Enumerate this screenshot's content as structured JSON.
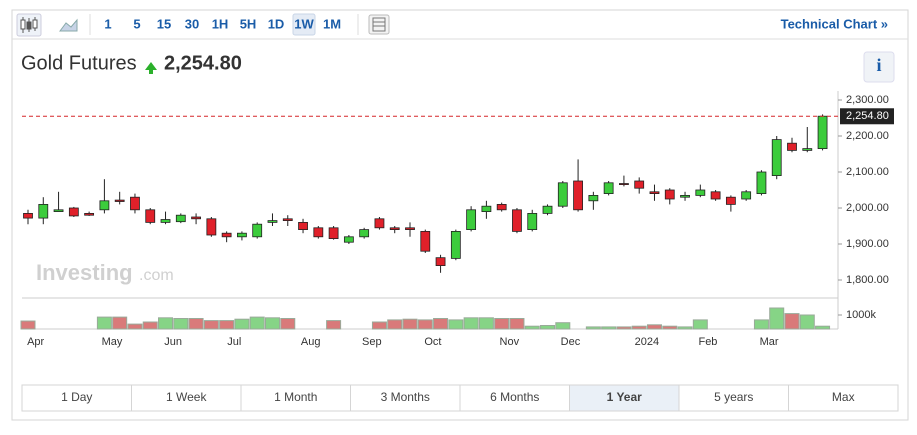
{
  "toolbar": {
    "intervals": [
      "1",
      "5",
      "15",
      "30",
      "1H",
      "5H",
      "1D",
      "1W",
      "1M"
    ],
    "selected_interval": 7,
    "technical_chart": "Technical Chart »"
  },
  "chart_data": {
    "type": "candlestick",
    "title": "Gold Futures",
    "info": "i",
    "last_price": 2254.8,
    "last_price_label": "2,254.80",
    "categories": [
      "Apr",
      null,
      null,
      null,
      null,
      "May",
      null,
      null,
      null,
      "Jun",
      null,
      null,
      null,
      "Jul",
      null,
      null,
      null,
      null,
      "Aug",
      null,
      null,
      null,
      "Sep",
      null,
      null,
      null,
      "Oct",
      null,
      null,
      null,
      null,
      "Nov",
      null,
      null,
      null,
      "Dec",
      null,
      null,
      null,
      null,
      "2024",
      null,
      null,
      null,
      "Feb",
      null,
      null,
      null,
      "Mar",
      null,
      null,
      null,
      null
    ],
    "open": [
      1985,
      1972,
      1990,
      2000,
      1985,
      1995,
      2022,
      2030,
      1995,
      1960,
      1962,
      1975,
      1970,
      1930,
      1920,
      1920,
      1960,
      1970,
      1960,
      1945,
      1945,
      1905,
      1920,
      1970,
      1945,
      1945,
      1935,
      1862,
      1860,
      1940,
      1990,
      2010,
      1995,
      1940,
      1985,
      2005,
      2075,
      2020,
      2040,
      2068,
      2075,
      2045,
      2050,
      2030,
      2035,
      2045,
      2030,
      2025,
      2040,
      2090,
      2180,
      2160,
      2165
    ],
    "high": [
      1995,
      2030,
      2045,
      2003,
      1990,
      2080,
      2045,
      2040,
      2000,
      1990,
      1985,
      1985,
      1975,
      1935,
      1935,
      1960,
      1985,
      1980,
      1970,
      1950,
      1950,
      1925,
      1945,
      1975,
      1950,
      1960,
      1940,
      1870,
      1940,
      2005,
      2020,
      2015,
      2000,
      1995,
      2010,
      2075,
      2135,
      2045,
      2075,
      2090,
      2085,
      2065,
      2055,
      2045,
      2065,
      2050,
      2035,
      2050,
      2105,
      2200,
      2195,
      2225,
      2260
    ],
    "low": [
      1955,
      1955,
      1990,
      1975,
      1978,
      1985,
      2010,
      1985,
      1955,
      1955,
      1958,
      1955,
      1920,
      1905,
      1910,
      1915,
      1950,
      1950,
      1930,
      1915,
      1912,
      1900,
      1915,
      1940,
      1930,
      1920,
      1875,
      1820,
      1855,
      1935,
      1970,
      1990,
      1930,
      1935,
      1980,
      2000,
      1990,
      1995,
      2035,
      2060,
      2040,
      2020,
      2010,
      2020,
      2030,
      2020,
      1990,
      2020,
      2035,
      2080,
      2155,
      2155,
      2160
    ],
    "close": [
      1972,
      2010,
      1995,
      1978,
      1980,
      2020,
      2018,
      1995,
      1960,
      1968,
      1980,
      1970,
      1925,
      1920,
      1930,
      1955,
      1965,
      1965,
      1940,
      1920,
      1915,
      1920,
      1940,
      1945,
      1940,
      1940,
      1880,
      1840,
      1935,
      1995,
      2005,
      1995,
      1935,
      1985,
      2005,
      2070,
      1995,
      2035,
      2070,
      2065,
      2055,
      2040,
      2025,
      2035,
      2050,
      2025,
      2010,
      2045,
      2100,
      2190,
      2160,
      2165,
      2255
    ],
    "colors": {
      "up": "#3ccc3c",
      "down": "#e0202a",
      "volume_up": "#86d486",
      "volume_down": "#d97a7a",
      "last_price_line": "#d62728"
    },
    "ylim": [
      1750,
      2325
    ],
    "yticks": [
      {
        "value": 1800,
        "label": "1,800.00"
      },
      {
        "value": 1900,
        "label": "1,900.00"
      },
      {
        "value": 2000,
        "label": "2,000.00"
      },
      {
        "value": 2100,
        "label": "2,100.00"
      },
      {
        "value": 2200,
        "label": "2,200.00"
      },
      {
        "value": 2300,
        "label": "2,300.00"
      }
    ],
    "volume": {
      "values": [
        570,
        null,
        null,
        null,
        null,
        850,
        850,
        350,
        500,
        800,
        750,
        750,
        600,
        600,
        700,
        850,
        800,
        750,
        null,
        null,
        600,
        null,
        null,
        500,
        650,
        700,
        650,
        750,
        650,
        800,
        800,
        750,
        750,
        200,
        250,
        450,
        null,
        150,
        150,
        150,
        200,
        300,
        200,
        150,
        650,
        null,
        null,
        null,
        650,
        1500,
        1100,
        1000,
        200
      ],
      "ylim": [
        0,
        2000
      ],
      "yticks": [
        {
          "value": 1000,
          "label": "1000k"
        }
      ]
    },
    "watermark": [
      "Investing",
      ".com"
    ]
  },
  "ranges": {
    "buttons": [
      "1 Day",
      "1 Week",
      "1 Month",
      "3 Months",
      "6 Months",
      "1 Year",
      "5 years",
      "Max"
    ],
    "selected": 5
  }
}
